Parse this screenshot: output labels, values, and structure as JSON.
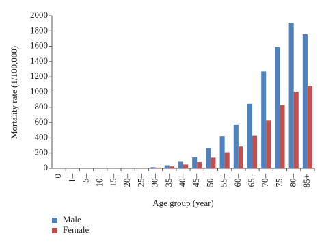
{
  "chart_data": {
    "type": "bar",
    "x_label": "Age group (year)",
    "y_label": "Mortality rate (1/100,000)",
    "categories": [
      "0",
      "1–",
      "5–",
      "10–",
      "15–",
      "20–",
      "25–",
      "30–",
      "35–",
      "40–",
      "45–",
      "50–",
      "55–",
      "60–",
      "65–",
      "70–",
      "75–",
      "80–",
      "85+"
    ],
    "series": [
      {
        "name": "Male",
        "color": "#4f81bd",
        "values": [
          5,
          1,
          1,
          1,
          2,
          3,
          5,
          15,
          40,
          85,
          145,
          265,
          420,
          575,
          845,
          1270,
          1590,
          1910,
          1760
        ]
      },
      {
        "name": "Female",
        "color": "#c0504d",
        "values": [
          4,
          1,
          1,
          1,
          1,
          2,
          3,
          10,
          25,
          50,
          80,
          140,
          210,
          285,
          425,
          625,
          830,
          1005,
          1080
        ]
      }
    ],
    "ylim": [
      0,
      2000
    ],
    "yticks": [
      0,
      200,
      400,
      600,
      800,
      1000,
      1200,
      1400,
      1600,
      1800,
      2000
    ],
    "grid": false
  }
}
